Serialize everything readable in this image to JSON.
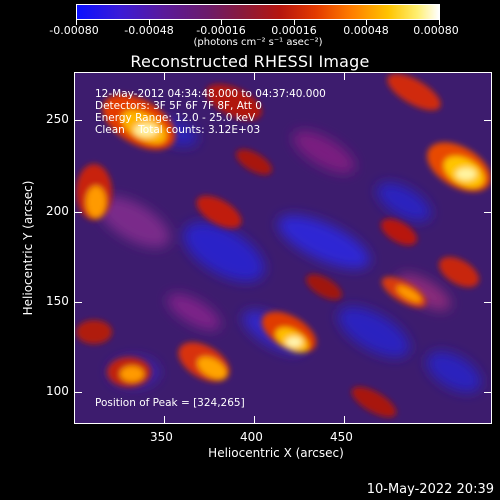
{
  "colorbar": {
    "ticks": [
      "-0.00080",
      "-0.00048",
      "-0.00016",
      "0.00016",
      "0.00048",
      "0.00080"
    ],
    "units": "(photons cm⁻² s⁻¹ asec⁻²)"
  },
  "title": "Reconstructed RHESSI Image",
  "info": {
    "line1": "12-May-2012 04:34:48.000 to 04:37:40.000",
    "line2": "Detectors: 3F 5F 6F 7F 8F, Att 0",
    "line3": "Energy Range: 12.0 - 25.0 keV",
    "line4": "Clean    Total counts: 3.12E+03"
  },
  "peak": "Position of Peak = [324,265]",
  "xaxis": {
    "label": "Heliocentric X (arcsec)",
    "ticks": [
      "350",
      "400",
      "450"
    ]
  },
  "yaxis": {
    "label": "Heliocentric Y (arcsec)",
    "ticks": [
      "100",
      "150",
      "200",
      "250"
    ]
  },
  "timestamp": "10-May-2022 20:39"
}
